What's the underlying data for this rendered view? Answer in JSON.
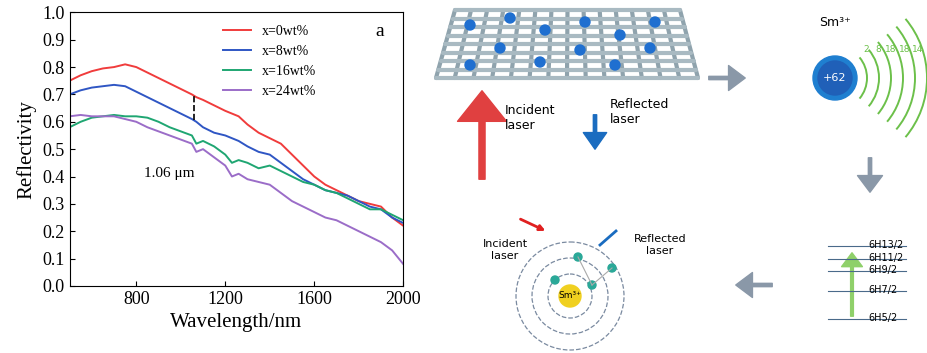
{
  "chart_data": {
    "type": "line",
    "x_label": "Wavelength/nm",
    "y_label": "Reflectivity",
    "x": [
      500,
      550,
      600,
      650,
      700,
      750,
      800,
      850,
      900,
      950,
      1000,
      1050,
      1070,
      1100,
      1150,
      1200,
      1230,
      1260,
      1300,
      1350,
      1400,
      1450,
      1500,
      1550,
      1600,
      1650,
      1700,
      1750,
      1800,
      1850,
      1900,
      1950,
      2000
    ],
    "series": [
      {
        "name": "x=0wt%",
        "color": "#f03c3c",
        "values": [
          0.75,
          0.77,
          0.785,
          0.795,
          0.8,
          0.81,
          0.8,
          0.78,
          0.76,
          0.74,
          0.72,
          0.7,
          0.69,
          0.68,
          0.66,
          0.64,
          0.63,
          0.62,
          0.59,
          0.56,
          0.54,
          0.52,
          0.48,
          0.44,
          0.4,
          0.37,
          0.35,
          0.33,
          0.31,
          0.3,
          0.29,
          0.25,
          0.22
        ]
      },
      {
        "name": "x=8wt%",
        "color": "#2f56c4",
        "values": [
          0.7,
          0.715,
          0.725,
          0.73,
          0.735,
          0.73,
          0.71,
          0.69,
          0.67,
          0.65,
          0.63,
          0.61,
          0.6,
          0.58,
          0.56,
          0.55,
          0.54,
          0.53,
          0.51,
          0.49,
          0.48,
          0.45,
          0.42,
          0.39,
          0.37,
          0.35,
          0.34,
          0.33,
          0.31,
          0.29,
          0.28,
          0.25,
          0.23
        ]
      },
      {
        "name": "x=16wt%",
        "color": "#1fa672",
        "values": [
          0.58,
          0.6,
          0.615,
          0.62,
          0.625,
          0.62,
          0.62,
          0.615,
          0.6,
          0.58,
          0.565,
          0.55,
          0.52,
          0.53,
          0.51,
          0.48,
          0.45,
          0.46,
          0.45,
          0.43,
          0.44,
          0.42,
          0.4,
          0.38,
          0.37,
          0.35,
          0.34,
          0.32,
          0.3,
          0.28,
          0.28,
          0.26,
          0.24
        ]
      },
      {
        "name": "x=24wt%",
        "color": "#9b6dc8",
        "values": [
          0.62,
          0.625,
          0.62,
          0.62,
          0.62,
          0.61,
          0.6,
          0.58,
          0.565,
          0.55,
          0.535,
          0.52,
          0.49,
          0.5,
          0.47,
          0.44,
          0.4,
          0.41,
          0.39,
          0.38,
          0.37,
          0.34,
          0.31,
          0.29,
          0.27,
          0.25,
          0.24,
          0.22,
          0.2,
          0.18,
          0.16,
          0.13,
          0.08
        ]
      }
    ],
    "xlim": [
      500,
      2000
    ],
    "xticks": [
      800,
      1200,
      1600,
      2000
    ],
    "ylim": [
      0.0,
      1.0
    ],
    "yticks": [
      0.0,
      0.1,
      0.2,
      0.3,
      0.4,
      0.5,
      0.6,
      0.7,
      0.8,
      0.9,
      1.0
    ],
    "legend": "upper center",
    "grid": false,
    "annotations": [
      {
        "text": "1.06 μm",
        "x": 1060
      }
    ],
    "panel": "a"
  },
  "diagram": {
    "top": {
      "incident": "Incident\nlaser",
      "reflected": "Reflected\nlaser"
    },
    "atom": {
      "label": "Sm³⁺",
      "charge": "+62",
      "shells": [
        "2",
        "8",
        "18",
        "18",
        "14"
      ]
    },
    "levels": [
      "6H13/2",
      "6H11/2",
      "6H9/2",
      "6H7/2",
      "6H5/2"
    ],
    "bottom": {
      "incident": "Incident\nlaser",
      "reflected": "Reflected\nlaser",
      "nucleus": "Sm³⁺"
    }
  }
}
